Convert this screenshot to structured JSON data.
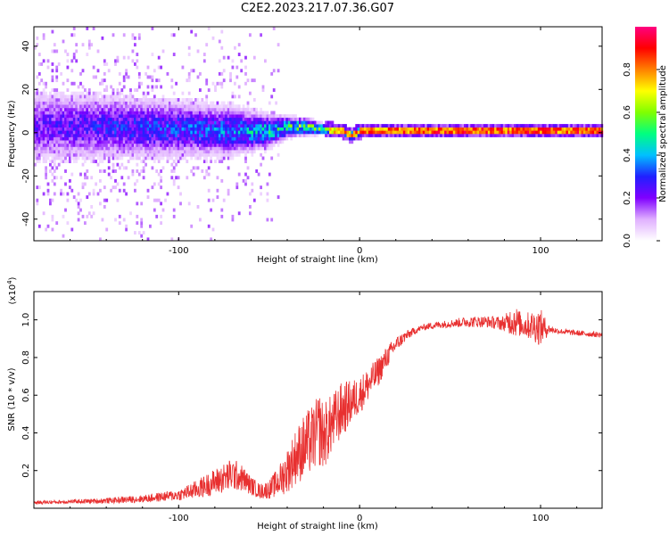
{
  "title": "C2E2.2023.217.07.36.G07",
  "chart_data": [
    {
      "type": "heatmap",
      "title": "C2E2.2023.217.07.36.G07",
      "xlabel": "Height of straight line (km)",
      "ylabel": "Frequency (Hz)",
      "xlim": [
        -180,
        134
      ],
      "ylim": [
        -50,
        49
      ],
      "xticks": [
        -100,
        0,
        100
      ],
      "yticks": [
        -40,
        -20,
        0,
        20,
        40
      ],
      "colorbar": {
        "label": "Normalized spectral amplitude",
        "range": [
          0,
          1
        ],
        "ticks": [
          "0.0",
          "0.2",
          "0.4",
          "0.6",
          "0.8"
        ],
        "colors": [
          "#ffffff",
          "#e0b0ff",
          "#8000ff",
          "#2020ff",
          "#00c0ff",
          "#00ff80",
          "#80ff00",
          "#ffff00",
          "#ff8000",
          "#ff0000",
          "#ff0080"
        ]
      },
      "profile": {
        "x": [
          -180,
          -140,
          -100,
          -70,
          -50,
          -40,
          -30,
          -20,
          -10,
          -5,
          0,
          50,
          100,
          134
        ],
        "center_hz": [
          2,
          2,
          1,
          0,
          0,
          2,
          2,
          1,
          0,
          -2,
          0,
          0,
          0,
          0
        ],
        "spread_hz": [
          9,
          8,
          7,
          6,
          4,
          2.5,
          2,
          1.2,
          0.8,
          1.5,
          1,
          1,
          1,
          1
        ],
        "peak_amp": [
          0.25,
          0.3,
          0.35,
          0.4,
          0.5,
          0.55,
          0.65,
          0.75,
          0.85,
          0.8,
          0.9,
          0.95,
          0.95,
          0.95
        ]
      }
    },
    {
      "type": "line",
      "xlabel": "Height of straight line (km)",
      "ylabel": "SNR (10 * v/v)",
      "multiplier": "(x10",
      "multiplier_exp": "4",
      "multiplier_close": ")",
      "xlim": [
        -180,
        134
      ],
      "ylim": [
        0.0,
        1.15
      ],
      "xticks": [
        -100,
        0,
        100
      ],
      "yticks": [
        "0.2",
        "0.4",
        "0.6",
        "0.8",
        "1.0"
      ],
      "series": [
        {
          "name": "SNR",
          "color": "#e83030",
          "x": [
            -180,
            -160,
            -140,
            -120,
            -100,
            -90,
            -80,
            -70,
            -65,
            -60,
            -55,
            -50,
            -45,
            -40,
            -35,
            -30,
            -25,
            -22,
            -20,
            -15,
            -10,
            -5,
            0,
            5,
            10,
            15,
            20,
            25,
            30,
            35,
            40,
            50,
            60,
            70,
            80,
            85,
            90,
            95,
            100,
            105,
            110,
            120,
            134
          ],
          "y": [
            0.03,
            0.035,
            0.04,
            0.05,
            0.07,
            0.1,
            0.14,
            0.18,
            0.16,
            0.12,
            0.09,
            0.1,
            0.14,
            0.2,
            0.28,
            0.33,
            0.38,
            0.42,
            0.38,
            0.45,
            0.52,
            0.56,
            0.6,
            0.66,
            0.72,
            0.8,
            0.87,
            0.91,
            0.94,
            0.96,
            0.97,
            0.98,
            0.99,
            0.99,
            0.98,
            1.0,
            0.97,
            0.97,
            0.96,
            0.95,
            0.94,
            0.93,
            0.92
          ],
          "noise": [
            0.01,
            0.01,
            0.015,
            0.02,
            0.03,
            0.05,
            0.07,
            0.09,
            0.07,
            0.05,
            0.04,
            0.05,
            0.08,
            0.12,
            0.15,
            0.18,
            0.18,
            0.2,
            0.18,
            0.16,
            0.15,
            0.12,
            0.1,
            0.09,
            0.08,
            0.06,
            0.04,
            0.03,
            0.02,
            0.015,
            0.02,
            0.02,
            0.03,
            0.03,
            0.04,
            0.09,
            0.06,
            0.08,
            0.1,
            0.02,
            0.015,
            0.015,
            0.015
          ]
        }
      ]
    }
  ]
}
